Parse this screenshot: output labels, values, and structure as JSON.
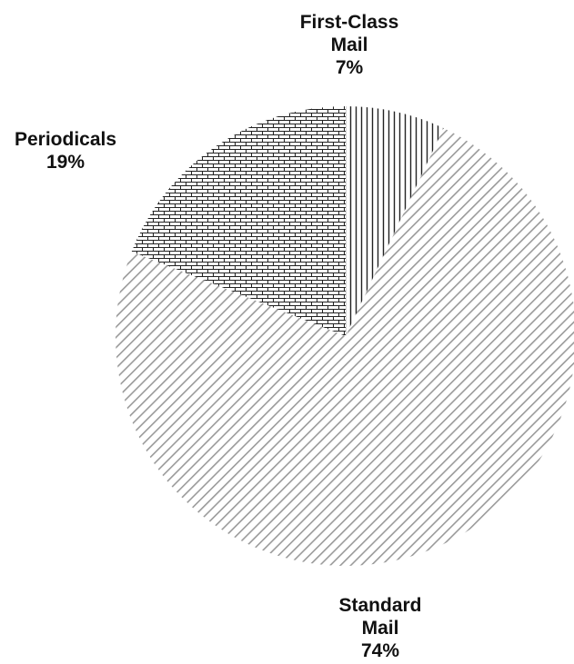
{
  "chart_data": {
    "type": "pie",
    "slices": [
      {
        "label_lines": [
          "First-Class",
          "Mail"
        ],
        "percent_label": "7%",
        "value": 7,
        "pattern": "vertical-lines"
      },
      {
        "label_lines": [
          "Standard",
          "Mail"
        ],
        "percent_label": "74%",
        "value": 74,
        "pattern": "diagonal-lines"
      },
      {
        "label_lines": [
          "Periodicals"
        ],
        "percent_label": "19%",
        "value": 19,
        "pattern": "brick"
      }
    ],
    "start_angle_deg": 0,
    "direction": "clockwise",
    "legend": "none",
    "colors": {
      "hatch_dark": "#222222",
      "hatch_light": "#9a9a9a",
      "background": "#ffffff"
    }
  }
}
